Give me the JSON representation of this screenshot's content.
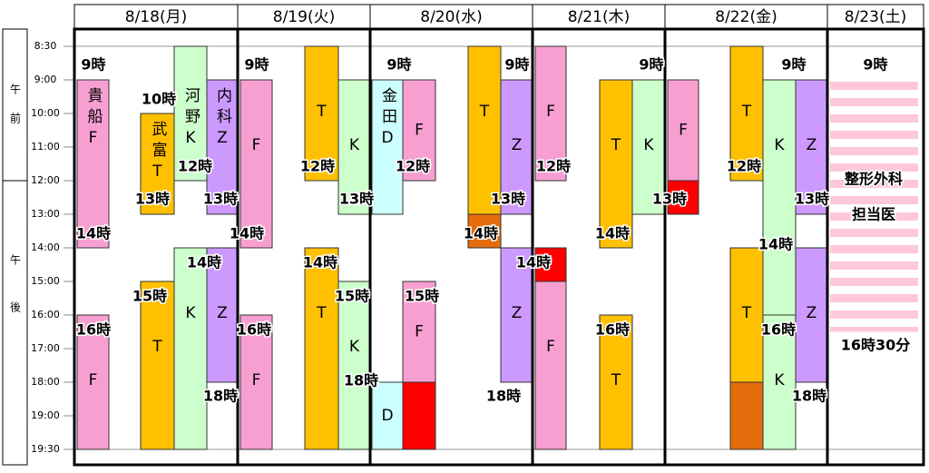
{
  "header": {
    "dates": [
      "8/18(月)",
      "8/19(火)",
      "8/20(水)",
      "8/21(木)",
      "8/22(金)",
      "8/23(土)"
    ]
  },
  "side": {
    "am": "午前",
    "pm": "午後"
  },
  "time_rows": [
    "8:30",
    "9:00",
    "10:00",
    "11:00",
    "12:00",
    "13:00",
    "14:00",
    "15:00",
    "16:00",
    "17:00",
    "18:00",
    "19:00",
    "19:30"
  ],
  "blocks": [
    {
      "label": "貴船F",
      "start": 9,
      "end": 14,
      "color": "#f89fd2"
    },
    {
      "label": "武富T",
      "start": 10,
      "end": 13,
      "color": "#ffc000"
    },
    {
      "label": "河野K",
      "start": 8.5,
      "end": 12,
      "color": "#ccffcc"
    },
    {
      "label": "内科Z",
      "start": 9,
      "end": 13,
      "color": "#cc99ff"
    },
    {
      "label": "F",
      "start": 16,
      "end": 19.5,
      "color": "#f89fd2"
    },
    {
      "label": "T",
      "start": 15,
      "end": 19.5,
      "color": "#ffc000"
    },
    {
      "label": "K",
      "start": 14,
      "end": 19.5,
      "color": "#ccffcc"
    },
    {
      "label": "Z",
      "start": 14,
      "end": 18,
      "color": "#cc99ff"
    },
    {
      "label": "F",
      "start": 9,
      "end": 14,
      "color": "#f89fd2"
    },
    {
      "label": "T",
      "start": 8.5,
      "end": 12,
      "color": "#ffc000"
    },
    {
      "label": "K",
      "start": 9,
      "end": 13,
      "color": "#ccffcc"
    },
    {
      "label": "F",
      "start": 16,
      "end": 19.5,
      "color": "#f89fd2"
    },
    {
      "label": "T",
      "start": 14,
      "end": 19.5,
      "color": "#ffc000"
    },
    {
      "label": "K",
      "start": 15,
      "end": 19.5,
      "color": "#ccffcc"
    },
    {
      "label": "金田D",
      "start": 9,
      "end": 13,
      "color": "#ccffff"
    },
    {
      "label": "F",
      "start": 9,
      "end": 12,
      "color": "#f89fd2"
    },
    {
      "label": "T",
      "start": 8.5,
      "end": 13,
      "color": "#ffc000"
    },
    {
      "start": 13,
      "end": 14,
      "color": "#e46c0a"
    },
    {
      "label": "Z",
      "start": 9,
      "end": 13,
      "color": "#cc99ff"
    },
    {
      "label": "D",
      "start": 18,
      "end": 19.5,
      "color": "#ccffff"
    },
    {
      "label": "F",
      "start": 15,
      "end": 18,
      "color": "#f89fd2"
    },
    {
      "start": 18,
      "end": 19.5,
      "color": "#ff0000"
    },
    {
      "label": "Z",
      "start": 14,
      "end": 18,
      "color": "#cc99ff"
    },
    {
      "label": "F",
      "start": 8.5,
      "end": 12,
      "color": "#f89fd2"
    },
    {
      "start": 14,
      "end": 15,
      "color": "#ff0000"
    },
    {
      "label": "F",
      "start": 15,
      "end": 19.5,
      "color": "#f89fd2"
    },
    {
      "label": "T",
      "start": 9,
      "end": 14,
      "color": "#ffc000"
    },
    {
      "label": "K",
      "start": 9,
      "end": 13,
      "color": "#ccffcc"
    },
    {
      "label": "T",
      "start": 16,
      "end": 19.5,
      "color": "#ffc000"
    },
    {
      "label": "F",
      "start": 9,
      "end": 12,
      "color": "#f89fd2"
    },
    {
      "start": 12,
      "end": 13,
      "color": "#ff0000"
    },
    {
      "label": "T",
      "start": 8.5,
      "end": 12,
      "color": "#ffc000"
    },
    {
      "label": "K",
      "start": 9,
      "end": 16,
      "color": "#ccffcc"
    },
    {
      "label": "Z",
      "start": 9,
      "end": 13,
      "color": "#cc99ff"
    },
    {
      "label": "T",
      "start": 14,
      "end": 18,
      "color": "#ffc000"
    },
    {
      "start": 18,
      "end": 19.5,
      "color": "#e46c0a"
    },
    {
      "label": "K",
      "start": 16,
      "end": 19.5,
      "color": "#ccffcc"
    },
    {
      "label": "Z",
      "start": 14,
      "end": 18,
      "color": "#cc99ff"
    }
  ],
  "saturday": {
    "title": "整形外科",
    "sub": "担当医",
    "start": 9,
    "end": 16.5,
    "color": "#ffc8d8"
  },
  "time_labels": [
    "9時",
    "10時",
    "12時",
    "13時",
    "13時",
    "14時",
    "14時",
    "15時",
    "16時",
    "18時",
    "9時",
    "14時",
    "12時",
    "13時",
    "16時",
    "14時",
    "15時",
    "9時",
    "12時",
    "14時",
    "9時",
    "13時",
    "18時",
    "15時",
    "14時",
    "18時",
    "12時",
    "14時",
    "9時",
    "13時",
    "16時",
    "13時",
    "12時",
    "14時",
    "16時",
    "9時",
    "13時",
    "18時",
    "9時",
    "16時30分"
  ]
}
